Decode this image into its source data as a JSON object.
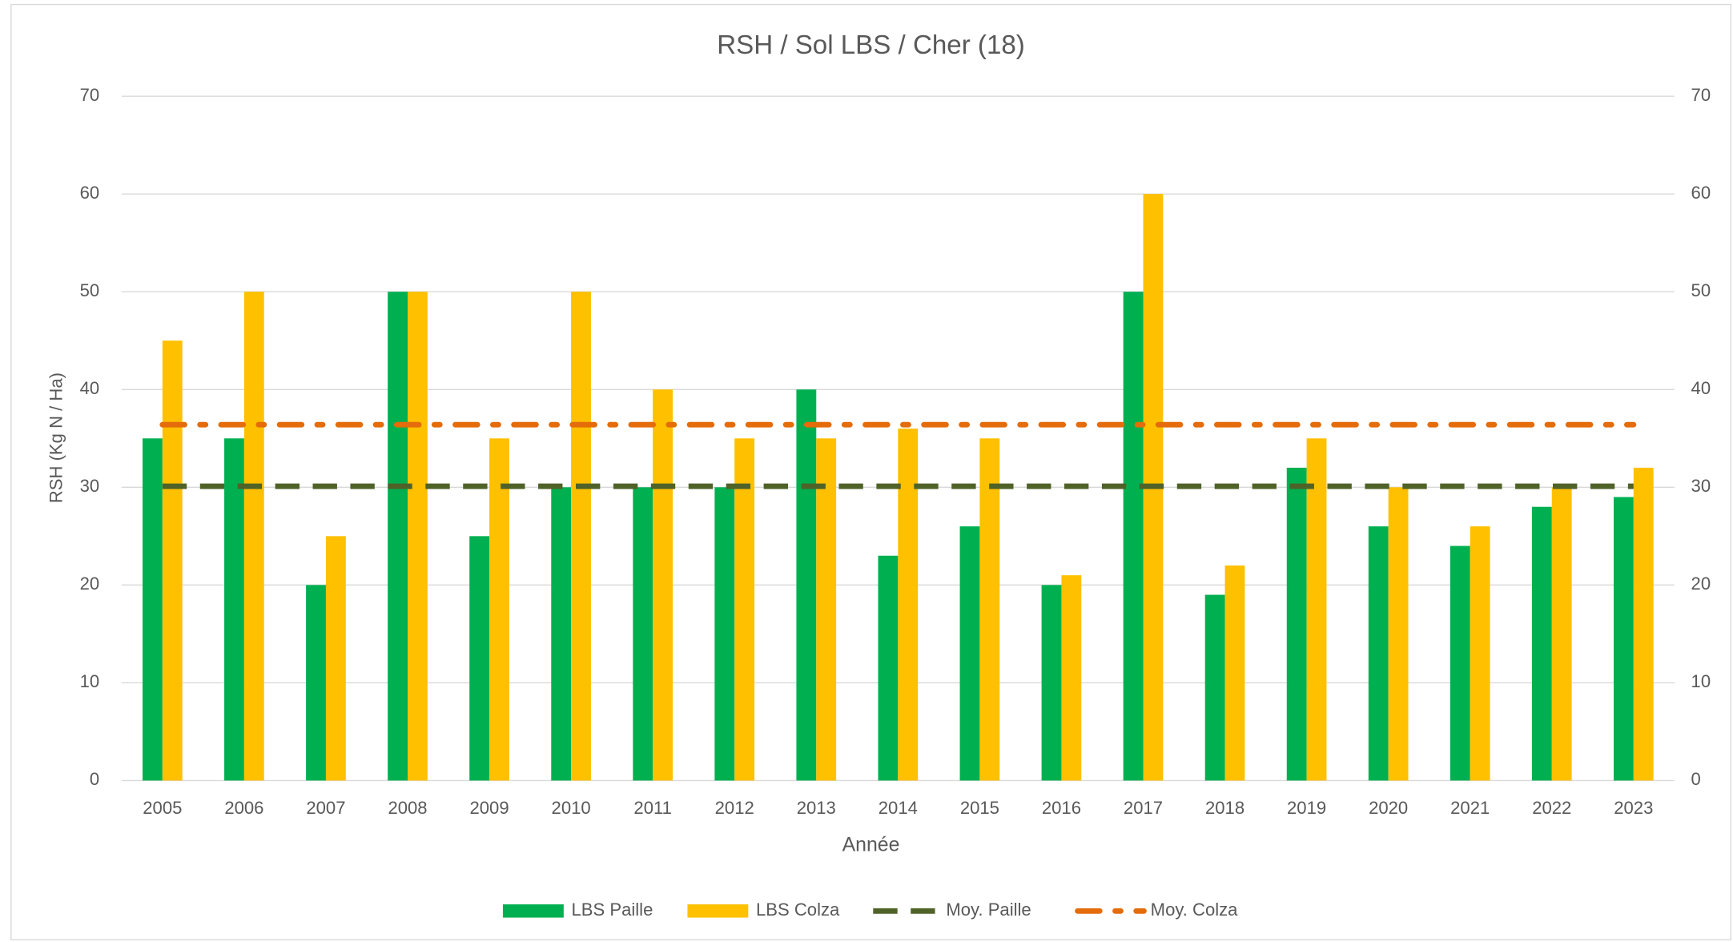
{
  "chart_data": {
    "type": "bar",
    "title": "RSH / Sol LBS / Cher (18)",
    "xlabel": "Année",
    "ylabel": "RSH (Kg N / Ha)",
    "categories": [
      "2005",
      "2006",
      "2007",
      "2008",
      "2009",
      "2010",
      "2011",
      "2012",
      "2013",
      "2014",
      "2015",
      "2016",
      "2017",
      "2018",
      "2019",
      "2020",
      "2021",
      "2022",
      "2023"
    ],
    "series": [
      {
        "name": "LBS Paille",
        "type": "bar",
        "color": "#00b050",
        "values": [
          35,
          35,
          20,
          50,
          25,
          30,
          30,
          30,
          40,
          23,
          26,
          20,
          50,
          19,
          32,
          26,
          24,
          28,
          29
        ]
      },
      {
        "name": "LBS Colza",
        "type": "bar",
        "color": "#ffc000",
        "values": [
          45,
          50,
          25,
          50,
          35,
          50,
          40,
          35,
          35,
          36,
          35,
          21,
          60,
          22,
          35,
          30,
          26,
          30,
          32
        ]
      },
      {
        "name": "Moy. Paille",
        "type": "line",
        "dash": "dash",
        "color": "#4f6228",
        "values": [
          30.1,
          30.1,
          30.1,
          30.1,
          30.1,
          30.1,
          30.1,
          30.1,
          30.1,
          30.1,
          30.1,
          30.1,
          30.1,
          30.1,
          30.1,
          30.1,
          30.1,
          30.1,
          30.1
        ]
      },
      {
        "name": "Moy. Colza",
        "type": "line",
        "dash": "dashdot",
        "color": "#e46c0a",
        "values": [
          36.4,
          36.4,
          36.4,
          36.4,
          36.4,
          36.4,
          36.4,
          36.4,
          36.4,
          36.4,
          36.4,
          36.4,
          36.4,
          36.4,
          36.4,
          36.4,
          36.4,
          36.4,
          36.4
        ]
      }
    ],
    "ylim": [
      0,
      70
    ],
    "yticks": [
      0,
      10,
      20,
      30,
      40,
      50,
      60,
      70
    ],
    "y2lim": [
      0,
      70
    ],
    "y2ticks": [
      0,
      10,
      20,
      30,
      40,
      50,
      60,
      70
    ],
    "grid": true,
    "legend": "bottom"
  }
}
